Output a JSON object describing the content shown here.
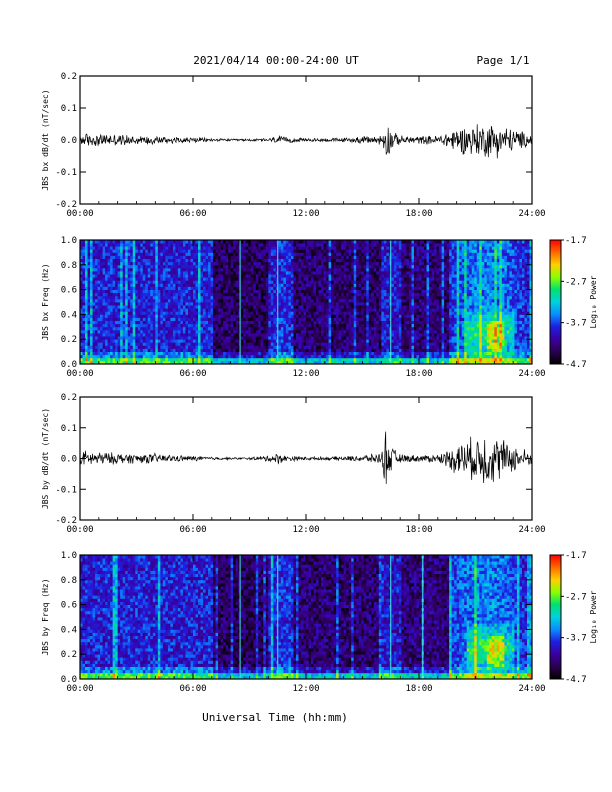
{
  "header": {
    "title": "2021/04/14  00:00-24:00 UT",
    "page": "Page 1/1"
  },
  "xlabel": "Universal Time (hh:mm)",
  "colors": {
    "colormap": [
      "#000000",
      "#2a0050",
      "#3a00a0",
      "#1e1ee0",
      "#0a8cff",
      "#00d2dc",
      "#00e070",
      "#8aff00",
      "#ffd000",
      "#ff6a00",
      "#ff0000"
    ]
  },
  "chart_data": [
    {
      "type": "line",
      "ylabel": "JBS bx dB/dt (nT/sec)",
      "xlim": [
        0,
        24
      ],
      "ylim": [
        -0.2,
        0.2
      ],
      "xticks": [
        "00:00",
        "06:00",
        "12:00",
        "18:00",
        "24:00"
      ],
      "yticks": [
        "-0.2",
        "-0.1",
        "0.0",
        "0.1",
        "0.2"
      ],
      "envelope": {
        "x": [
          0,
          1,
          2,
          3,
          4,
          5,
          6,
          7,
          8,
          9,
          10,
          10.5,
          11,
          12,
          13,
          14,
          15,
          16,
          16.3,
          16.6,
          17,
          18,
          19,
          19.5,
          20,
          20.5,
          21,
          21.5,
          22,
          22.5,
          23,
          23.5,
          24
        ],
        "amplitude": [
          0.025,
          0.022,
          0.02,
          0.016,
          0.016,
          0.012,
          0.01,
          0.006,
          0.004,
          0.004,
          0.006,
          0.014,
          0.01,
          0.006,
          0.006,
          0.008,
          0.012,
          0.018,
          0.07,
          0.03,
          0.015,
          0.014,
          0.016,
          0.03,
          0.045,
          0.05,
          0.06,
          0.06,
          0.065,
          0.05,
          0.04,
          0.03,
          0.02
        ]
      }
    },
    {
      "type": "heatmap",
      "ylabel": "JBS bx Freq (Hz)",
      "colorbar_label": "Log₁₀ Power",
      "xlim": [
        0,
        24
      ],
      "ylim": [
        0,
        1.0
      ],
      "xticks": [
        "00:00",
        "06:00",
        "12:00",
        "18:00",
        "24:00"
      ],
      "yticks": [
        "0.0",
        "0.2",
        "0.4",
        "0.6",
        "0.8",
        "1.0"
      ],
      "clim": [
        -4.7,
        -1.7
      ],
      "cbar_ticks": [
        "-1.7",
        "-2.7",
        "-3.7",
        "-4.7"
      ],
      "vertical_lines_hours": [
        8.5,
        10.5,
        16.5
      ]
    },
    {
      "type": "line",
      "ylabel": "JBS by dB/dt (nT/sec)",
      "xlim": [
        0,
        24
      ],
      "ylim": [
        -0.2,
        0.2
      ],
      "xticks": [
        "00:00",
        "06:00",
        "12:00",
        "18:00",
        "24:00"
      ],
      "yticks": [
        "-0.2",
        "-0.1",
        "0.0",
        "0.1",
        "0.2"
      ],
      "envelope": {
        "x": [
          0,
          1,
          2,
          3,
          4,
          5,
          6,
          7,
          8,
          9,
          10,
          10.5,
          11,
          12,
          13,
          14,
          15,
          16,
          16.3,
          16.5,
          17,
          18,
          19,
          19.5,
          20,
          20.5,
          21,
          21.5,
          22,
          22.5,
          23,
          23.5,
          24
        ],
        "amplitude": [
          0.03,
          0.025,
          0.02,
          0.018,
          0.018,
          0.012,
          0.01,
          0.006,
          0.004,
          0.004,
          0.012,
          0.02,
          0.01,
          0.006,
          0.006,
          0.008,
          0.012,
          0.02,
          0.13,
          0.05,
          0.015,
          0.012,
          0.016,
          0.03,
          0.06,
          0.07,
          0.08,
          0.1,
          0.09,
          0.07,
          0.05,
          0.04,
          0.02
        ]
      }
    },
    {
      "type": "heatmap",
      "ylabel": "JBS by Freq (Hz)",
      "colorbar_label": "Log₁₀ Power",
      "xlim": [
        0,
        24
      ],
      "ylim": [
        0,
        1.0
      ],
      "xticks": [
        "00:00",
        "06:00",
        "12:00",
        "18:00",
        "24:00"
      ],
      "yticks": [
        "0.0",
        "0.2",
        "0.4",
        "0.6",
        "0.8",
        "1.0"
      ],
      "clim": [
        -4.7,
        -1.7
      ],
      "cbar_ticks": [
        "-1.7",
        "-2.7",
        "-3.7",
        "-4.7"
      ],
      "vertical_lines_hours": [
        8.5,
        10.5,
        16.5,
        18.2
      ]
    }
  ]
}
